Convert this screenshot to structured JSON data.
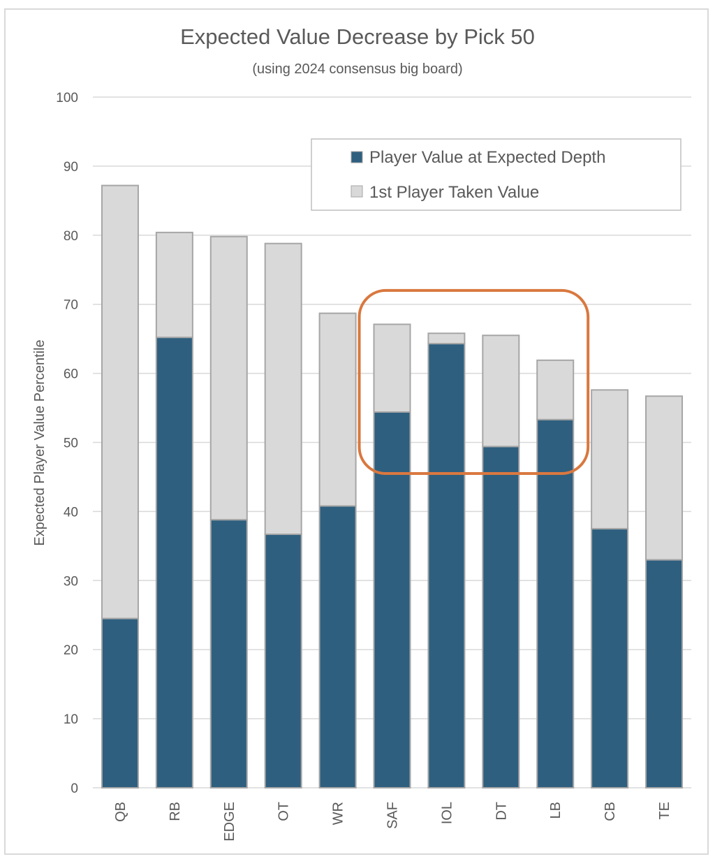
{
  "chart_data": {
    "type": "bar",
    "stacked": true,
    "title": "Expected Value Decrease by Pick 50",
    "subtitle": "(using 2024 consensus big board)",
    "xlabel": "",
    "ylabel": "Expected Player Value Percentile",
    "ylim": [
      0,
      100
    ],
    "yticks": [
      "0",
      "10",
      "20",
      "30",
      "40",
      "50",
      "60",
      "70",
      "80",
      "90",
      "100"
    ],
    "grid": true,
    "legend_position": "top-right",
    "categories": [
      "QB",
      "RB",
      "EDGE",
      "OT",
      "WR",
      "SAF",
      "IOL",
      "DT",
      "LB",
      "CB",
      "TE"
    ],
    "series": [
      {
        "name": "Player Value at Expected Depth",
        "color": "#2e5f7f",
        "values": [
          24.5,
          65.2,
          38.8,
          36.7,
          40.8,
          54.4,
          64.3,
          49.4,
          53.3,
          37.5,
          33.0
        ]
      },
      {
        "name": "1st Player Taken Value",
        "color": "#d9d9d9",
        "totals": [
          87.2,
          80.4,
          79.8,
          78.8,
          68.7,
          67.1,
          65.8,
          65.5,
          61.9,
          57.6,
          56.7
        ]
      }
    ],
    "annotation": {
      "type": "highlight-box",
      "color": "#d9783f",
      "categories": [
        "SAF",
        "IOL",
        "DT",
        "LB"
      ]
    }
  }
}
